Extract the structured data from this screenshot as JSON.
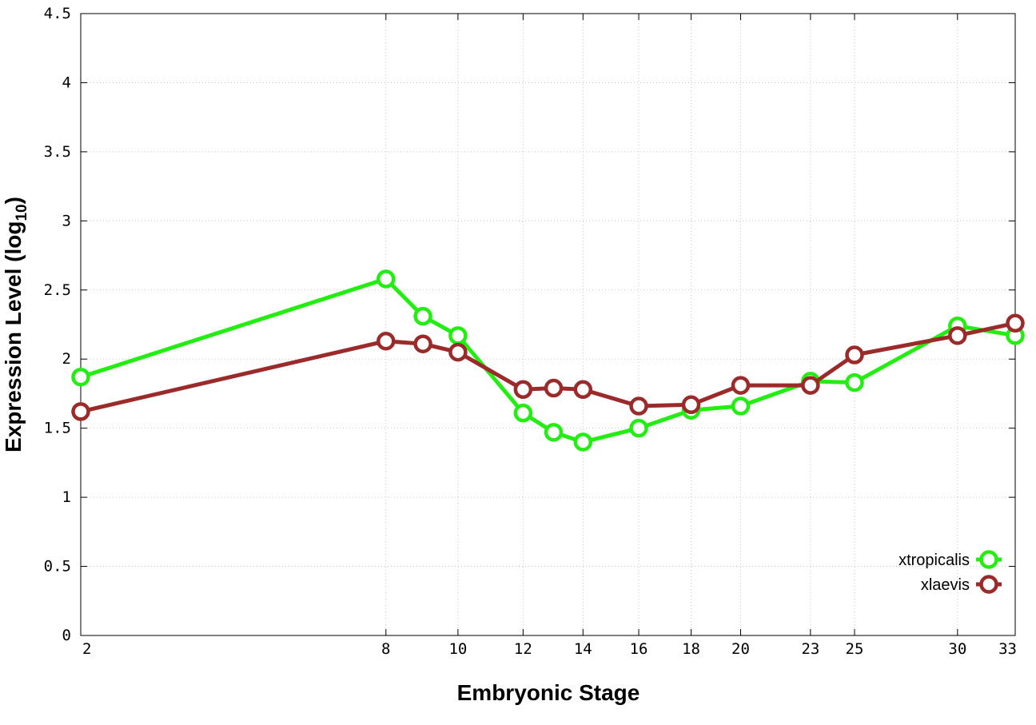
{
  "chart_data": {
    "type": "line",
    "title": "",
    "xlabel": "Embryonic Stage",
    "ylabel": "Expression Level (log",
    "ylabel_sub": "10",
    "ylabel_close": ")",
    "x_scale": "sqrt",
    "xlim": [
      2,
      33
    ],
    "ylim": [
      0,
      4.5
    ],
    "x_ticks": [
      2,
      8,
      10,
      12,
      14,
      16,
      18,
      20,
      23,
      25,
      30,
      33
    ],
    "y_ticks": [
      0,
      0.5,
      1,
      1.5,
      2,
      2.5,
      3,
      3.5,
      4,
      4.5
    ],
    "grid": true,
    "legend_position": "bottom-right",
    "x": [
      2,
      8,
      9,
      10,
      12,
      13,
      14,
      16,
      18,
      20,
      23,
      25,
      30,
      33
    ],
    "series": [
      {
        "name": "xtropicalis",
        "color": "#22ee11",
        "values": [
          1.87,
          2.58,
          2.31,
          2.17,
          1.61,
          1.47,
          1.4,
          1.5,
          1.63,
          1.66,
          1.84,
          1.83,
          2.24,
          2.17
        ]
      },
      {
        "name": "xlaevis",
        "color": "#9b2a2a",
        "values": [
          1.62,
          2.13,
          2.11,
          2.05,
          1.78,
          1.79,
          1.78,
          1.66,
          1.67,
          1.81,
          1.81,
          2.03,
          2.17,
          2.26
        ]
      }
    ]
  }
}
